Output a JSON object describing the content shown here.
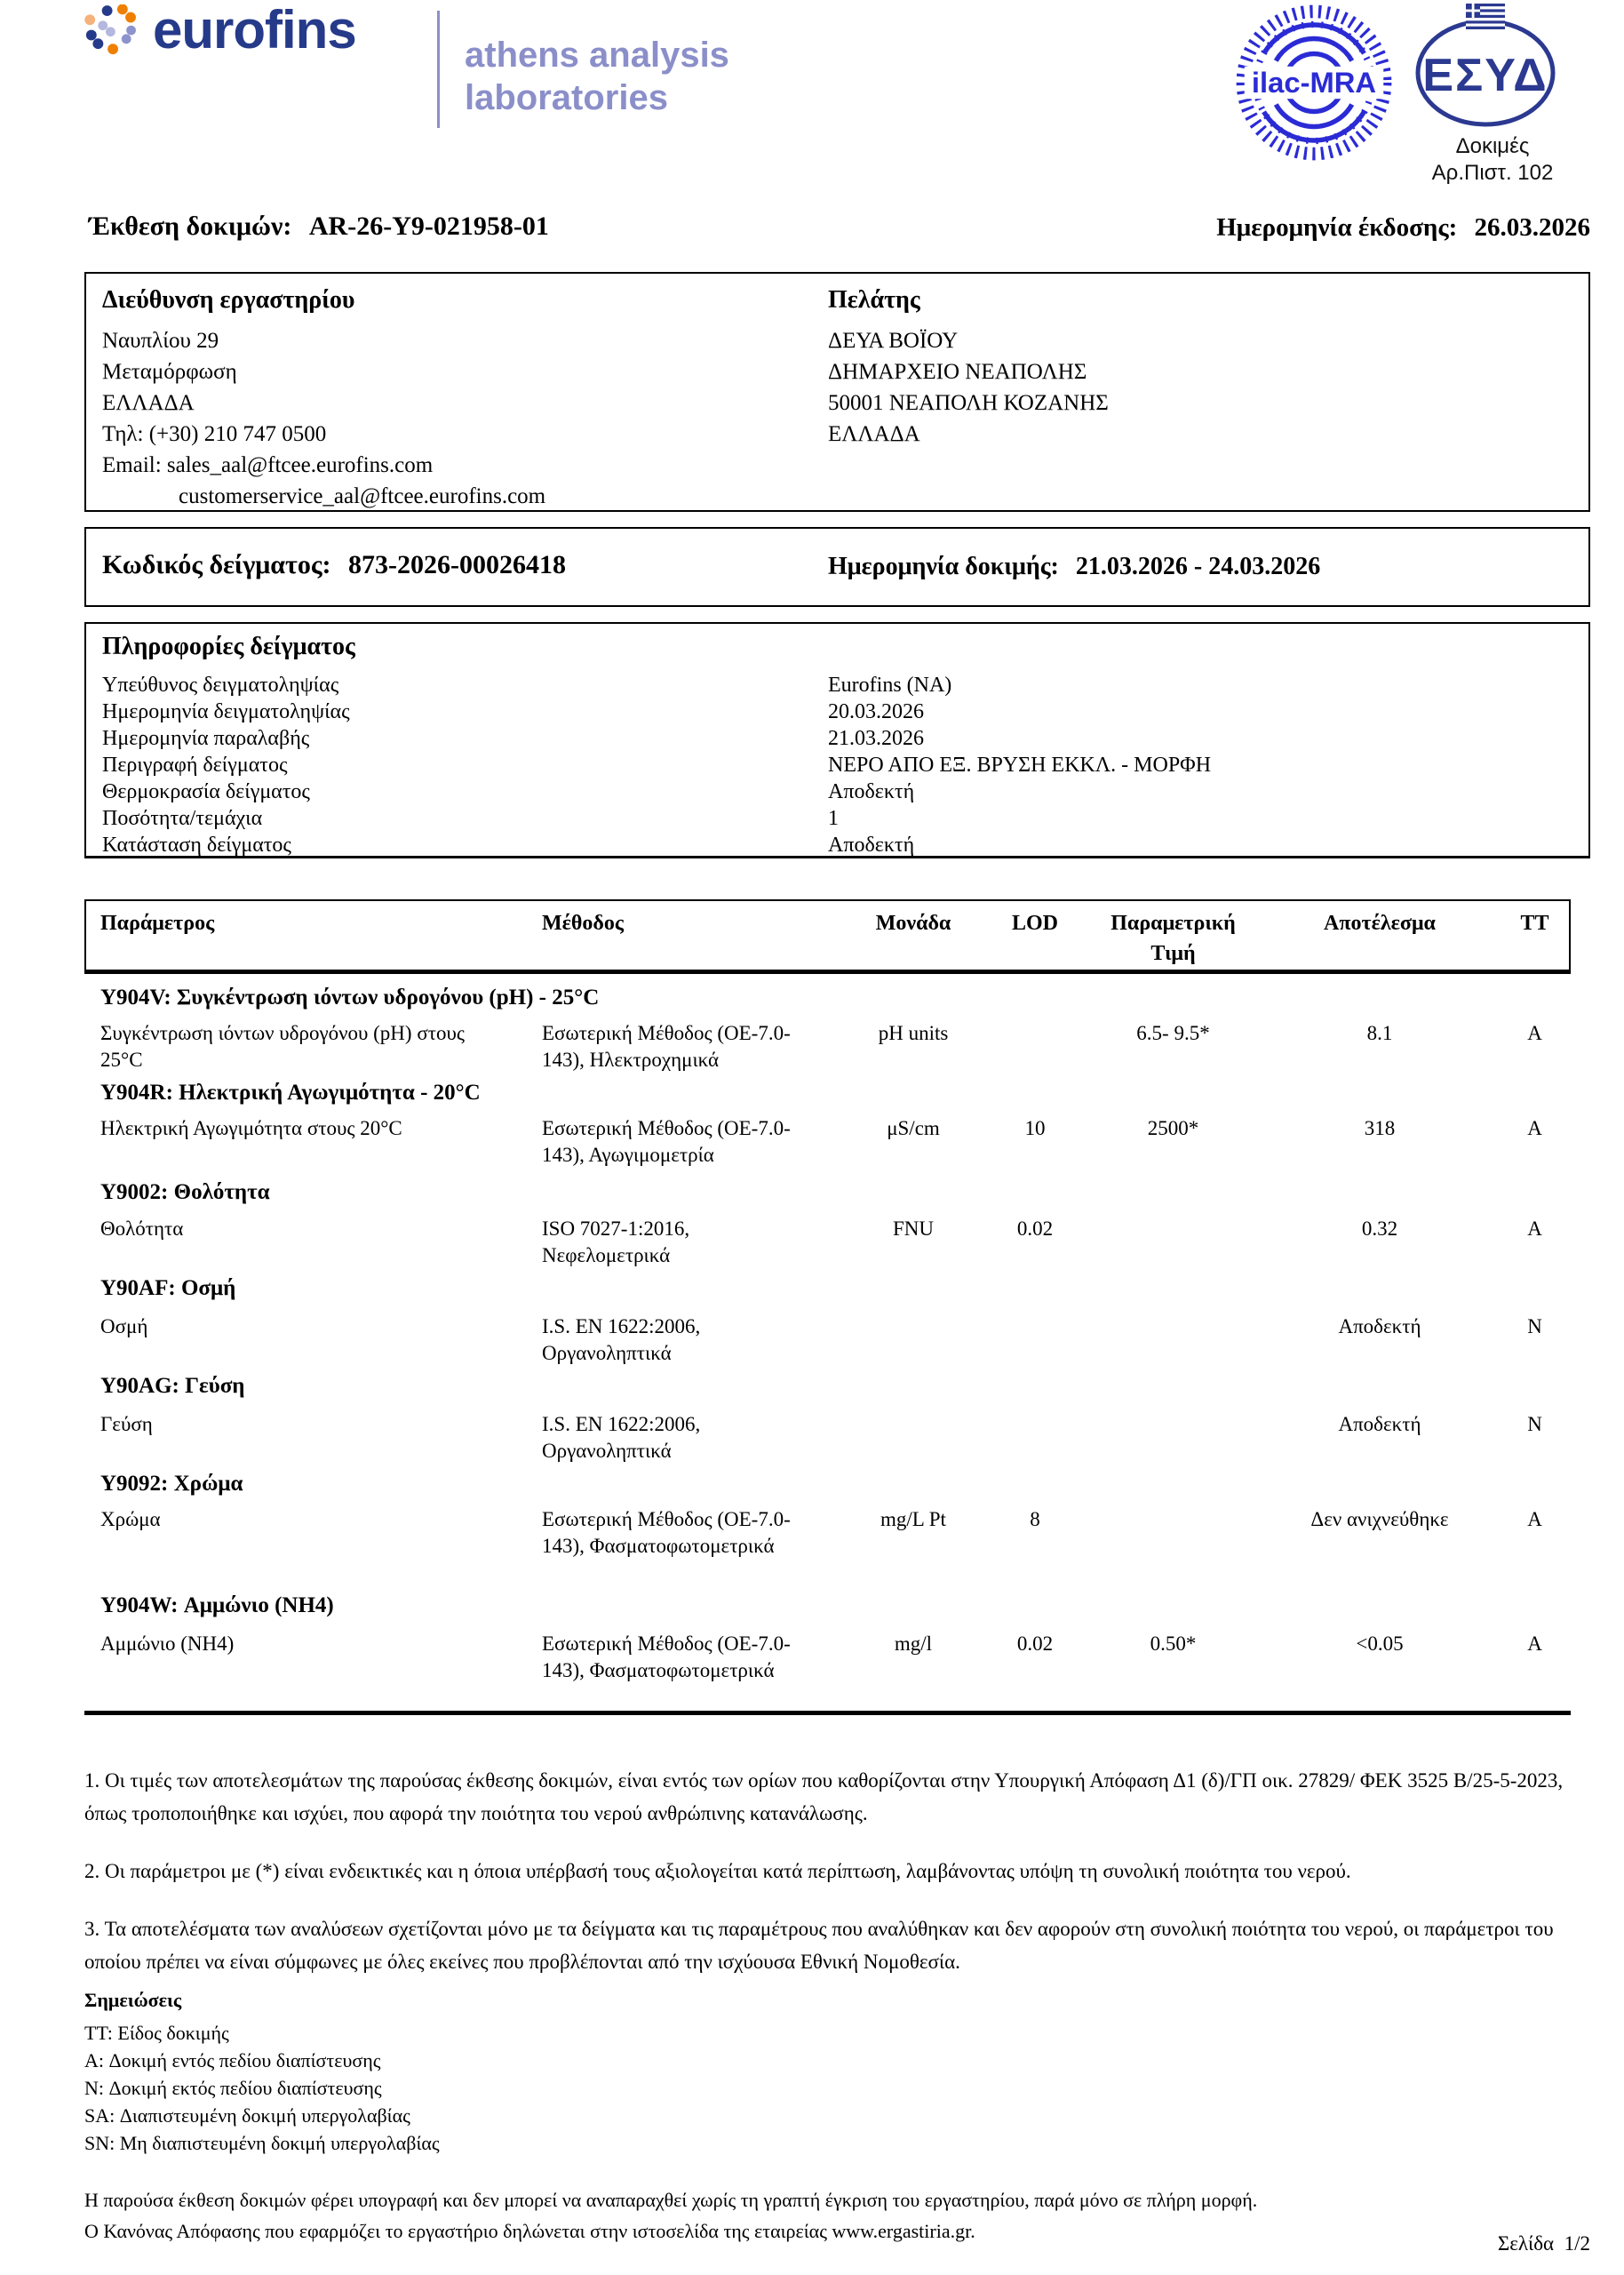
{
  "brand": {
    "wordmark": "eurofins",
    "division_line1": "athens analysis",
    "division_line2": "laboratories",
    "colors": {
      "navy": "#263A8A",
      "orange": "#EE7F00",
      "peach": "#F6B27C",
      "periwinkle": "#8D93CC",
      "lavender": "#B4B7DE",
      "division_purple": "#8B8FC9",
      "ilac_blue": "#2B2BD5",
      "esyd_navy": "#2B3990"
    }
  },
  "accreditation": {
    "ilac_label": "ilac-MRA",
    "esyd_label": "ΕΣΥΔ",
    "caption_line1": "Δοκιμές",
    "caption_line2": "Αρ.Πιστ. 102"
  },
  "report_header": {
    "title_label": "Έκθεση δοκιμών:",
    "title_value": "AR-26-Y9-021958-01",
    "issue_date_label": "Ημερομηνία έκδοσης:",
    "issue_date_value": "26.03.2026"
  },
  "lab_address": {
    "heading": "Διεύθυνση εργαστηρίου",
    "line1": "Ναυπλίου 29",
    "line2": "Μεταμόρφωση",
    "line3": "ΕΛΛΑΔΑ",
    "line4": "Τηλ: (+30) 210 747 0500",
    "line5": "Email: sales_aal@ftcee.eurofins.com",
    "line6": "customerservice_aal@ftcee.eurofins.com"
  },
  "client": {
    "heading": "Πελάτης",
    "line1": "ΔΕΥΑ ΒΟΪΟΥ",
    "line2": "ΔΗΜΑΡΧΕΙΟ ΝΕΑΠΟΛΗΣ",
    "line3": "50001 ΝΕΑΠΟΛΗ ΚΟΖΑΝΗΣ",
    "line4": "ΕΛΛΑΔΑ"
  },
  "sample_code": {
    "label": "Κωδικός δείγματος:",
    "value": "873-2026-00026418",
    "test_date_label": "Ημερομηνία δοκιμής:",
    "test_date_value": "21.03.2026 - 24.03.2026"
  },
  "sample_info": {
    "heading": "Πληροφορίες δείγματος",
    "rows": [
      {
        "label": "Υπεύθυνος δειγματοληψίας",
        "value": "Eurofins (NA)"
      },
      {
        "label": "Ημερομηνία δειγματοληψίας",
        "value": "20.03.2026"
      },
      {
        "label": "Ημερομηνία παραλαβής",
        "value": "21.03.2026"
      },
      {
        "label": "Περιγραφή δείγματος",
        "value": "ΝΕΡΟ ΑΠΟ ΕΞ. ΒΡΥΣΗ ΕΚΚΛ. - ΜΟΡΦΗ"
      },
      {
        "label": "Θερμοκρασία δείγματος",
        "value": "Αποδεκτή"
      },
      {
        "label": "Ποσότητα/τεμάχια",
        "value": "1"
      },
      {
        "label": "Κατάσταση δείγματος",
        "value": "Αποδεκτή"
      }
    ]
  },
  "results_table": {
    "headers": {
      "parameter": "Παράμετρος",
      "method": "Μέθοδος",
      "unit": "Μονάδα",
      "lod": "LOD",
      "param_value_line1": "Παραμετρική",
      "param_value_line2": "Τιμή",
      "result": "Αποτέλεσμα",
      "tt": "TT"
    },
    "groups": [
      {
        "title": "Y904V: Συγκέντρωση ιόντων υδρογόνου (pH) - 25°C",
        "rows": [
          {
            "parameter": "Συγκέντρωση ιόντων υδρογόνου (pH)  στους 25°C",
            "method": "Εσωτερική Μέθοδος (ΟΕ-7.0-143), Ηλεκτροχημικά",
            "unit": "pH units",
            "lod": "",
            "param_value": "6.5- 9.5*",
            "result": "8.1",
            "tt": "A"
          }
        ]
      },
      {
        "title": "Y904R: Ηλεκτρική Αγωγιμότητα - 20°C",
        "rows": [
          {
            "parameter": "Ηλεκτρική Αγωγιμότητα στους 20°C",
            "method": "Εσωτερική Μέθοδος (ΟΕ-7.0-143), Αγωγιμομετρία",
            "unit": "μS/cm",
            "lod": "10",
            "param_value": "2500*",
            "result": "318",
            "tt": "A"
          }
        ]
      },
      {
        "title": "Y9002: Θολότητα",
        "rows": [
          {
            "parameter": "Θολότητα",
            "method": "ISO 7027-1:2016, Νεφελομετρικά",
            "unit": "FNU",
            "lod": "0.02",
            "param_value": "",
            "result": "0.32",
            "tt": "A"
          }
        ]
      },
      {
        "title": "Y90AF: Οσμή",
        "rows": [
          {
            "parameter": "Οσμή",
            "method": "I.S. EN 1622:2006, Οργανοληπτικά",
            "unit": "",
            "lod": "",
            "param_value": "",
            "result": "Αποδεκτή",
            "tt": "N"
          }
        ]
      },
      {
        "title": "Y90AG: Γεύση",
        "rows": [
          {
            "parameter": "Γεύση",
            "method": "I.S. EN 1622:2006, Οργανοληπτικά",
            "unit": "",
            "lod": "",
            "param_value": "",
            "result": "Αποδεκτή",
            "tt": "N"
          }
        ]
      },
      {
        "title": "Y9092: Χρώμα",
        "rows": [
          {
            "parameter": "Χρώμα",
            "method": "Εσωτερική Μέθοδος (ΟΕ-7.0-143), Φασματοφωτομετρικά",
            "unit": "mg/L Pt",
            "lod": "8",
            "param_value": "",
            "result": "Δεν ανιχνεύθηκε",
            "tt": "A"
          }
        ]
      },
      {
        "title": "Y904W: Αμμώνιο (NH4)",
        "rows": [
          {
            "parameter": "Αμμώνιο (NH4)",
            "method": "Εσωτερική Μέθοδος (ΟΕ-7.0-143), Φασματοφωτομετρικά",
            "unit": "mg/l",
            "lod": "0.02",
            "param_value": "0.50*",
            "result": "<0.05",
            "tt": "A"
          }
        ]
      }
    ]
  },
  "notes": [
    "1. Οι τιμές των αποτελεσμάτων της παρούσας έκθεσης δοκιμών, είναι εντός των ορίων που καθορίζονται στην Υπουργική Απόφαση Δ1 (δ)/ΓΠ οικ. 27829/ ΦΕΚ 3525 Β/25-5-2023, όπως τροποποιήθηκε και ισχύει, που αφορά την ποιότητα του νερού ανθρώπινης κατανάλωσης.",
    "2. Οι παράμετροι με (*) είναι ενδεικτικές και η όποια υπέρβασή τους αξιολογείται κατά περίπτωση, λαμβάνοντας υπόψη τη συνολική ποιότητα του νερού.",
    "3. Τα αποτελέσματα των αναλύσεων σχετίζονται μόνο με τα δείγματα και τις παραμέτρους που αναλύθηκαν και δεν αφορούν στη συνολική ποιότητα του νερού, οι παράμετροι του οποίου πρέπει να είναι σύμφωνες με όλες εκείνες που προβλέπονται από την ισχύουσα Εθνική Νομοθεσία."
  ],
  "legend": {
    "heading": "Σημειώσεις",
    "items": [
      "TT: Είδος δοκιμής",
      "A: Δοκιμή εντός πεδίου διαπίστευσης",
      "N: Δοκιμή εκτός πεδίου διαπίστευσης",
      "SA: Διαπιστευμένη δοκιμή υπεργολαβίας",
      "SN: Μη διαπιστευμένη δοκιμή υπεργολαβίας"
    ]
  },
  "footer": {
    "line1": "Η παρούσα έκθεση δοκιμών φέρει υπογραφή και δεν μπορεί να αναπαραχθεί χωρίς τη γραπτή έγκριση του εργαστηρίου, παρά μόνο σε πλήρη μορφή.",
    "line2": "Ο Κανόνας Απόφασης που εφαρμόζει το εργαστήριο δηλώνεται στην ιστοσελίδα της εταιρείας www.ergastiria.gr.",
    "page_label": "Σελίδα  1/2"
  }
}
